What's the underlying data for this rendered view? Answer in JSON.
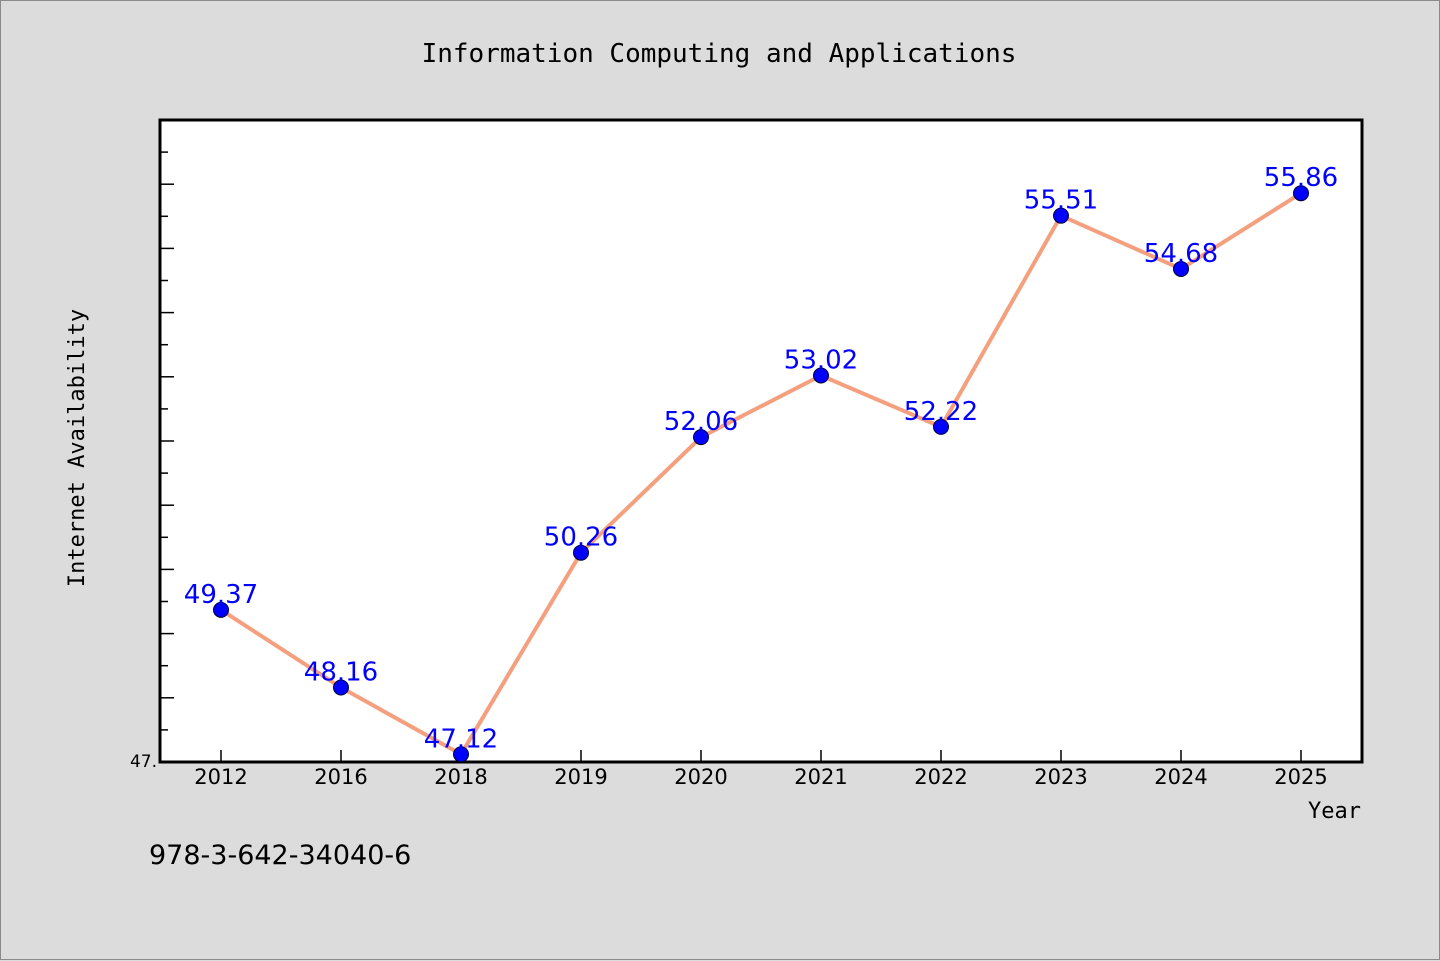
{
  "chart_data": {
    "type": "line",
    "title": "Information Computing and Applications",
    "xlabel": "Year",
    "ylabel": "Internet Availability",
    "y_tick_label": "47.",
    "categories": [
      "2012",
      "2016",
      "2018",
      "2019",
      "2020",
      "2021",
      "2022",
      "2023",
      "2024",
      "2025"
    ],
    "series": [
      {
        "values": [
          49.37,
          48.16,
          47.12,
          50.26,
          52.06,
          53.02,
          52.22,
          55.51,
          54.68,
          55.86
        ],
        "labels": [
          "49.37",
          "48.16",
          "47.12",
          "50.26",
          "52.06",
          "53.02",
          "52.22",
          "55.51",
          "54.68",
          "55.86"
        ]
      }
    ],
    "ylim": [
      47,
      57
    ],
    "grid": false,
    "colors": {
      "line": "#f4a07e",
      "marker": "#0000ff",
      "label": "#0000ff",
      "axis": "#000000",
      "plot_bg": "#ffffff",
      "frame_bg": "#dcdcdc"
    }
  },
  "footer_text": "978-3-642-34040-6"
}
